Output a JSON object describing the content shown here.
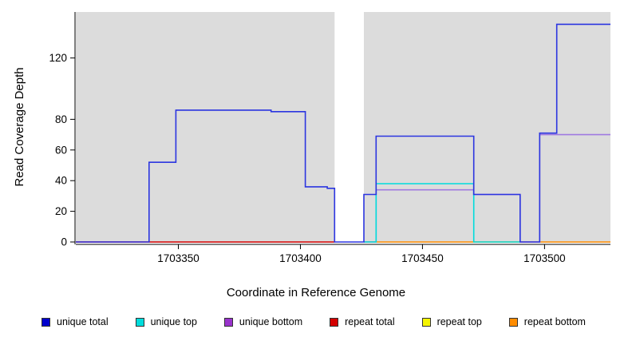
{
  "chart_data": {
    "type": "line",
    "title": "",
    "xlabel": "Coordinate in Reference Genome",
    "ylabel": "Read Coverage Depth",
    "xlim": [
      1703308,
      1703527
    ],
    "ylim": [
      0,
      150
    ],
    "xticks": [
      1703350,
      1703400,
      1703450,
      1703500
    ],
    "yticks": [
      0,
      20,
      40,
      60,
      80,
      120
    ],
    "grid": false,
    "legend_position": "bottom",
    "shaded_regions": [
      {
        "x0": 1703308,
        "x1": 1703414,
        "color": "#dcdcdc"
      },
      {
        "x0": 1703426,
        "x1": 1703527,
        "color": "#dcdcdc"
      }
    ],
    "series": [
      {
        "name": "unique total",
        "color": "#2b35e0",
        "points": [
          [
            1703308,
            0
          ],
          [
            1703338,
            0
          ],
          [
            1703338,
            52
          ],
          [
            1703349,
            52
          ],
          [
            1703349,
            86
          ],
          [
            1703388,
            86
          ],
          [
            1703388,
            85
          ],
          [
            1703402,
            85
          ],
          [
            1703402,
            36
          ],
          [
            1703411,
            36
          ],
          [
            1703411,
            35
          ],
          [
            1703414,
            35
          ],
          [
            1703414,
            0
          ],
          [
            1703426,
            0
          ],
          [
            1703426,
            31
          ],
          [
            1703431,
            31
          ],
          [
            1703431,
            69
          ],
          [
            1703471,
            69
          ],
          [
            1703471,
            31
          ],
          [
            1703490,
            31
          ],
          [
            1703490,
            0
          ],
          [
            1703498,
            0
          ],
          [
            1703498,
            71
          ],
          [
            1703505,
            71
          ],
          [
            1703505,
            142
          ],
          [
            1703527,
            142
          ]
        ]
      },
      {
        "name": "unique top",
        "color": "#00dcdc",
        "points": [
          [
            1703426,
            0
          ],
          [
            1703431,
            0
          ],
          [
            1703431,
            38
          ],
          [
            1703471,
            38
          ],
          [
            1703471,
            0
          ],
          [
            1703490,
            0
          ]
        ]
      },
      {
        "name": "unique bottom",
        "color": "#a07ae0",
        "points": [
          [
            1703426,
            0
          ],
          [
            1703431,
            0
          ],
          [
            1703431,
            34
          ],
          [
            1703471,
            34
          ],
          [
            1703471,
            31
          ],
          [
            1703490,
            31
          ],
          [
            1703490,
            0
          ],
          [
            1703498,
            0
          ],
          [
            1703498,
            70
          ],
          [
            1703527,
            70
          ]
        ]
      },
      {
        "name": "repeat total",
        "color": "#d40000",
        "points": [
          [
            1703308,
            0
          ],
          [
            1703414,
            0
          ]
        ]
      },
      {
        "name": "repeat top",
        "color": "#f5f500",
        "points": []
      },
      {
        "name": "repeat bottom",
        "color": "#ff8c00",
        "points": [
          [
            1703426,
            0
          ],
          [
            1703527,
            0
          ]
        ]
      }
    ],
    "legend": [
      {
        "label": "unique total",
        "color": "#0000cd"
      },
      {
        "label": "unique top",
        "color": "#00dcdc"
      },
      {
        "label": "unique bottom",
        "color": "#9933cc"
      },
      {
        "label": "repeat total",
        "color": "#d40000"
      },
      {
        "label": "repeat top",
        "color": "#f5f500"
      },
      {
        "label": "repeat bottom",
        "color": "#ff8c00"
      }
    ]
  }
}
